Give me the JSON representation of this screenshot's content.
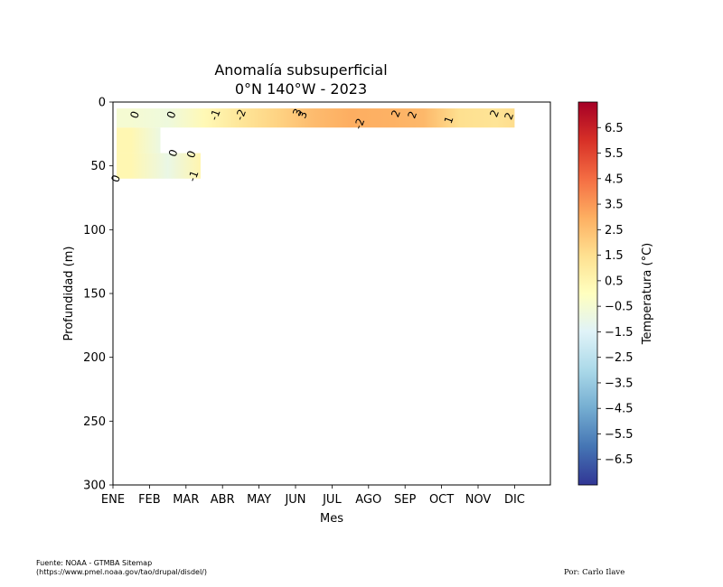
{
  "chart_data": {
    "type": "heatmap",
    "title_lines": [
      "Anomalía subsuperficial",
      "0°N 140°W - 2023"
    ],
    "xlabel": "Mes",
    "ylabel": "Profundidad (m)",
    "x_categories": [
      "ENE",
      "FEB",
      "MAR",
      "ABR",
      "MAY",
      "JUN",
      "JUL",
      "AGO",
      "SEP",
      "OCT",
      "NOV",
      "DIC"
    ],
    "ylim": [
      300,
      0
    ],
    "y_ticks": [
      0,
      50,
      100,
      150,
      200,
      250,
      300
    ],
    "colorbar": {
      "label": "Temperatura (°C)",
      "range": [
        -7.5,
        7.5
      ],
      "ticks": [
        "6.5",
        "5.5",
        "4.5",
        "3.5",
        "2.5",
        "1.5",
        "0.5",
        "−0.5",
        "−1.5",
        "−2.5",
        "−3.5",
        "−4.5",
        "−5.5",
        "−6.5"
      ],
      "colormap": "RdYlBu_r"
    },
    "depth_rows": [
      {
        "depth_range": [
          5,
          20
        ],
        "months_covered": [
          0.1,
          11.0
        ],
        "anomaly_by_month": [
          -0.5,
          -0.8,
          0.3,
          1.2,
          1.9,
          2.6,
          3.0,
          2.9,
          2.7,
          1.5,
          1.3,
          1.6
        ]
      },
      {
        "depth_range": [
          20,
          40
        ],
        "months_covered": [
          0.1,
          1.3
        ],
        "anomaly_by_month": [
          0.4,
          -0.9
        ]
      },
      {
        "depth_range": [
          40,
          60
        ],
        "months_covered": [
          0.1,
          2.4
        ],
        "anomaly_by_month": [
          0.4,
          -1.0,
          0.5
        ]
      }
    ],
    "contour_labels": [
      {
        "text": "0",
        "month": 0.6,
        "depth": 10
      },
      {
        "text": "0",
        "month": 1.6,
        "depth": 10
      },
      {
        "text": "-1",
        "month": 2.8,
        "depth": 10
      },
      {
        "text": "-2",
        "month": 3.5,
        "depth": 10
      },
      {
        "text": "3",
        "month": 5.05,
        "depth": 8
      },
      {
        "text": "3",
        "month": 5.2,
        "depth": 10
      },
      {
        "text": "-2",
        "month": 6.75,
        "depth": 17
      },
      {
        "text": "2",
        "month": 7.75,
        "depth": 9
      },
      {
        "text": "2",
        "month": 8.2,
        "depth": 10
      },
      {
        "text": "1",
        "month": 9.2,
        "depth": 14
      },
      {
        "text": "2",
        "month": 10.45,
        "depth": 9
      },
      {
        "text": "2",
        "month": 10.85,
        "depth": 11
      },
      {
        "text": "0",
        "month": 1.65,
        "depth": 40
      },
      {
        "text": "0",
        "month": 2.15,
        "depth": 41
      },
      {
        "text": "-1",
        "month": 2.2,
        "depth": 58
      },
      {
        "text": "0",
        "month": 0.08,
        "depth": 60
      }
    ],
    "grid": false,
    "legend": "none"
  },
  "footer": {
    "source_line1": "Fuente: NOAA - GTMBA Sitemap",
    "source_line2": "(https://www.pmel.noaa.gov/tao/drupal/disdel/)",
    "author": "Por: Carlo Ilave"
  }
}
